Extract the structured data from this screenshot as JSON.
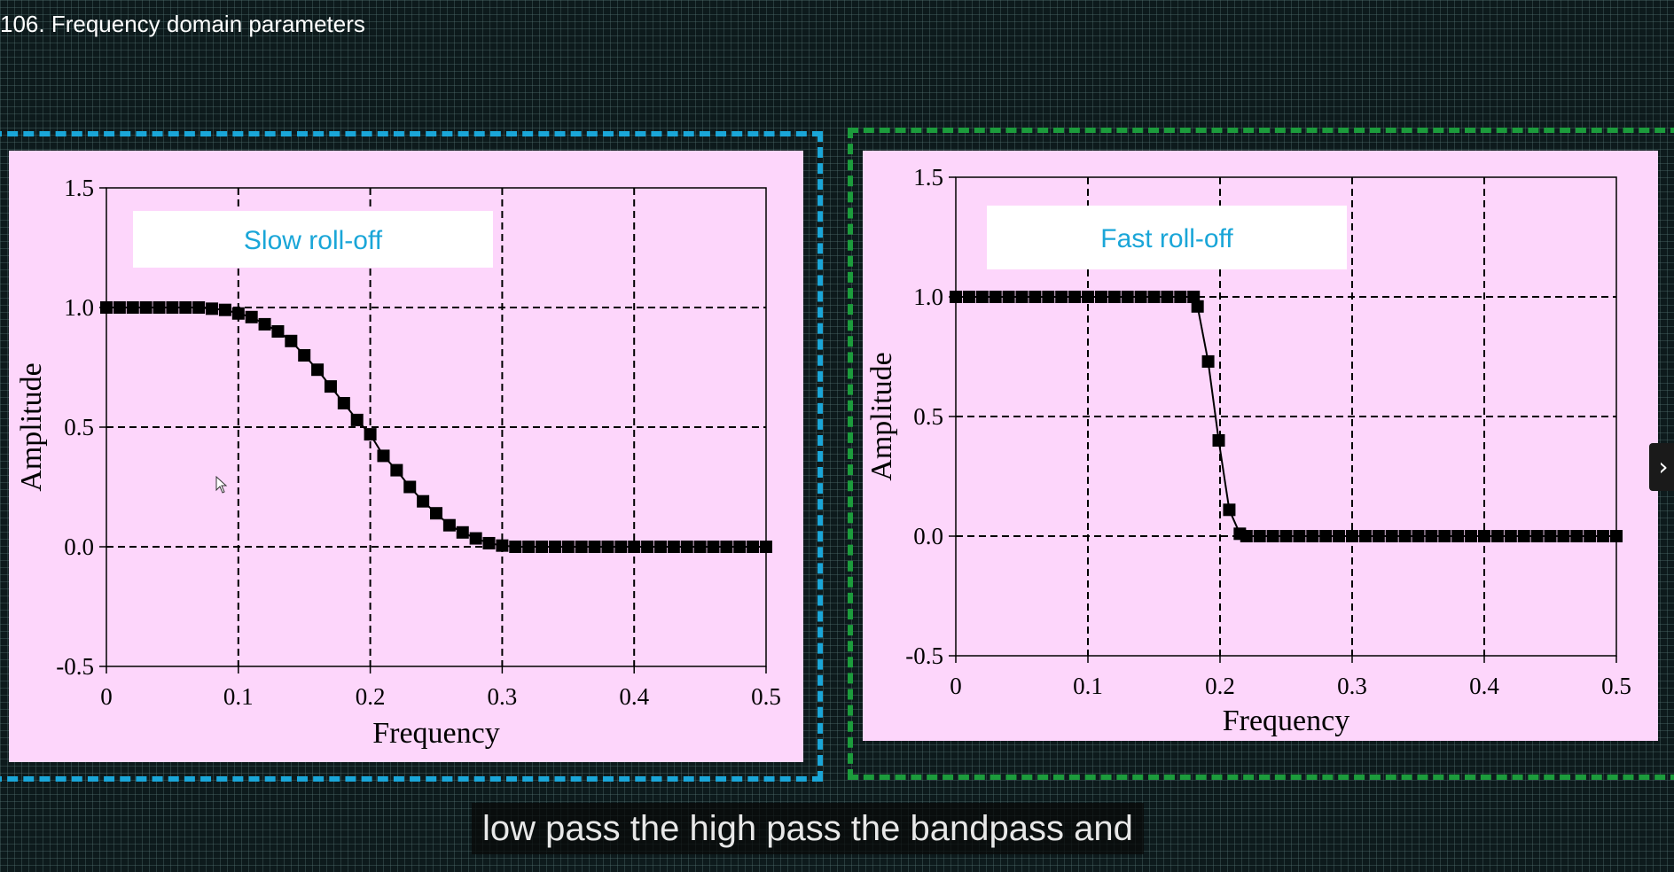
{
  "video": {
    "title": "106. Frequency domain parameters",
    "caption": "low pass the high pass the bandpass and",
    "next_icon": "chevron-right-icon"
  },
  "colors": {
    "panel_bg": "#fdd6fb",
    "left_frame": "#1aa6d8",
    "right_frame": "#1c9c3c",
    "label_text": "#1aa6d8"
  },
  "chart_data": [
    {
      "type": "line",
      "label_box": "Slow roll-off",
      "xlabel": "Frequency",
      "ylabel": "Amplitude",
      "xlim": [
        0,
        0.5
      ],
      "ylim": [
        -0.5,
        1.5
      ],
      "x_ticks": [
        "0",
        "0.1",
        "0.2",
        "0.3",
        "0.4",
        "0.5"
      ],
      "y_ticks": [
        "1.5",
        "1.0",
        "0.5",
        "0.0",
        "-0.5"
      ],
      "grid": true,
      "marker": "square",
      "series": [
        {
          "x": [
            0,
            0.01,
            0.02,
            0.03,
            0.04,
            0.05,
            0.06,
            0.07,
            0.08,
            0.09,
            0.1,
            0.11,
            0.12,
            0.13,
            0.14,
            0.15,
            0.16,
            0.17,
            0.18,
            0.19,
            0.2,
            0.21,
            0.22,
            0.23,
            0.24,
            0.25,
            0.26,
            0.27,
            0.28,
            0.29,
            0.3,
            0.31,
            0.32,
            0.33,
            0.34,
            0.35,
            0.36,
            0.37,
            0.38,
            0.39,
            0.4,
            0.41,
            0.42,
            0.43,
            0.44,
            0.45,
            0.46,
            0.47,
            0.48,
            0.49,
            0.5
          ],
          "y": [
            1.0,
            1.0,
            1.0,
            1.0,
            1.0,
            1.0,
            1.0,
            1.0,
            0.995,
            0.99,
            0.975,
            0.96,
            0.93,
            0.9,
            0.86,
            0.8,
            0.74,
            0.67,
            0.6,
            0.53,
            0.47,
            0.38,
            0.32,
            0.25,
            0.19,
            0.14,
            0.09,
            0.06,
            0.035,
            0.015,
            0.005,
            0.0,
            0.0,
            0.0,
            0.0,
            0.0,
            0.0,
            0.0,
            0.0,
            0.0,
            0.0,
            0.0,
            0.0,
            0.0,
            0.0,
            0.0,
            0.0,
            0.0,
            0.0,
            0.0,
            0.0
          ]
        }
      ]
    },
    {
      "type": "line",
      "label_box": "Fast roll-off",
      "xlabel": "Frequency",
      "ylabel": "Amplitude",
      "xlim": [
        0,
        0.5
      ],
      "ylim": [
        -0.5,
        1.5
      ],
      "x_ticks": [
        "0",
        "0.1",
        "0.2",
        "0.3",
        "0.4",
        "0.5"
      ],
      "y_ticks": [
        "1.5",
        "1.0",
        "0.5",
        "0.0",
        "-0.5"
      ],
      "grid": true,
      "marker": "square",
      "series": [
        {
          "x": [
            0,
            0.01,
            0.02,
            0.03,
            0.04,
            0.05,
            0.06,
            0.07,
            0.08,
            0.09,
            0.1,
            0.11,
            0.12,
            0.13,
            0.14,
            0.15,
            0.16,
            0.17,
            0.18,
            0.183,
            0.191,
            0.199,
            0.207,
            0.215,
            0.22,
            0.23,
            0.24,
            0.25,
            0.26,
            0.27,
            0.28,
            0.29,
            0.3,
            0.31,
            0.32,
            0.33,
            0.34,
            0.35,
            0.36,
            0.37,
            0.38,
            0.39,
            0.4,
            0.41,
            0.42,
            0.43,
            0.44,
            0.45,
            0.46,
            0.47,
            0.48,
            0.49,
            0.5
          ],
          "y": [
            1.0,
            1.0,
            1.0,
            1.0,
            1.0,
            1.0,
            1.0,
            1.0,
            1.0,
            1.0,
            1.0,
            1.0,
            1.0,
            1.0,
            1.0,
            1.0,
            1.0,
            1.0,
            1.0,
            0.96,
            0.73,
            0.4,
            0.11,
            0.01,
            0.0,
            0.0,
            0.0,
            0.0,
            0.0,
            0.0,
            0.0,
            0.0,
            0.0,
            0.0,
            0.0,
            0.0,
            0.0,
            0.0,
            0.0,
            0.0,
            0.0,
            0.0,
            0.0,
            0.0,
            0.0,
            0.0,
            0.0,
            0.0,
            0.0,
            0.0,
            0.0,
            0.0,
            0.0
          ]
        }
      ]
    }
  ]
}
